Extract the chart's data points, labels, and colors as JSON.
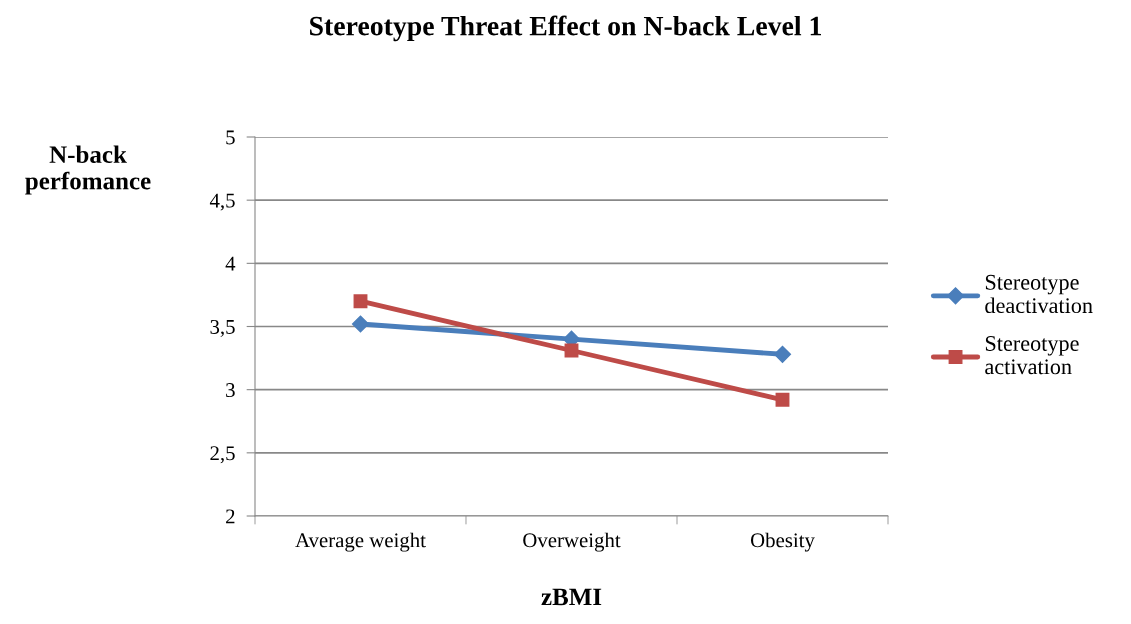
{
  "chart_data": {
    "type": "line",
    "title": "Stereotype Threat Effect on N-back Level 1",
    "xlabel": "zBMI",
    "ylabel": "N-back\nperfomance",
    "categories": [
      "Average weight",
      "Overweight",
      "Obesity"
    ],
    "series": [
      {
        "name": "Stereotype\ndeactivation",
        "color": "#4a7ebb",
        "marker": "diamond",
        "values": [
          3.52,
          3.4,
          3.28
        ]
      },
      {
        "name": "Stereotype\nactivation",
        "color": "#be4b48",
        "marker": "square",
        "values": [
          3.7,
          3.31,
          2.92
        ]
      }
    ],
    "ylim": [
      2,
      5
    ],
    "yticks": [
      2,
      {
        "value": 2.5,
        "label": "2,5"
      },
      3,
      {
        "value": 3.5,
        "label": "3,5"
      },
      4,
      {
        "value": 4.5,
        "label": "4,5"
      },
      5
    ],
    "grid": "y",
    "legend": "right",
    "line_style": "solid"
  }
}
